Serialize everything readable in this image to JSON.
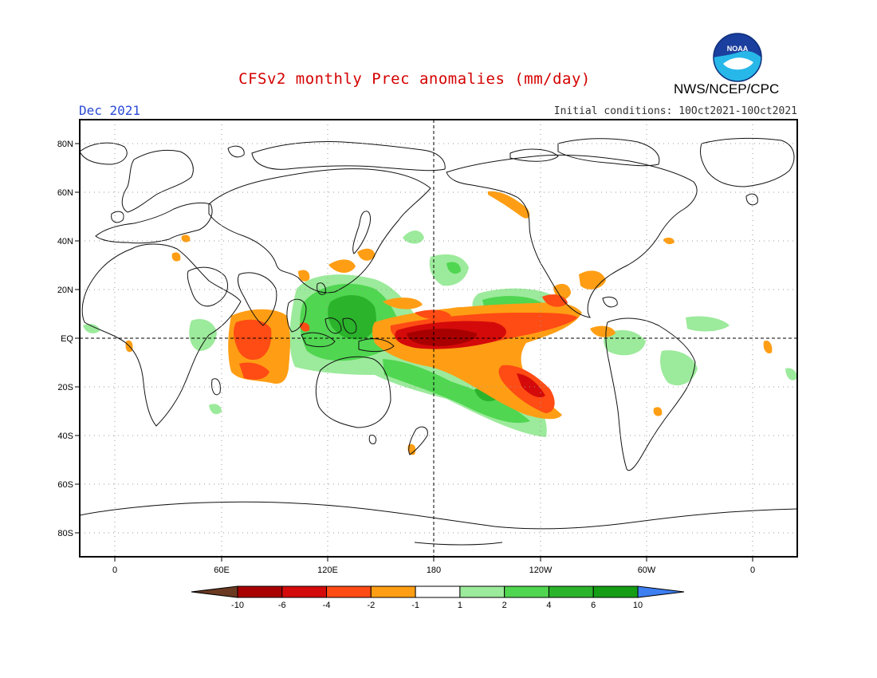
{
  "title": "CFSv2 monthly Prec anomalies (mm/day)",
  "agency": "NWS/NCEP/CPC",
  "logo_text": "NOAA",
  "date_label": "Dec 2021",
  "initial_conditions": "Initial conditions: 10Oct2021-10Oct2021",
  "lat_labels": [
    "80N",
    "60N",
    "40N",
    "20N",
    "EQ",
    "20S",
    "40S",
    "60S",
    "80S"
  ],
  "lon_labels": [
    "0",
    "60E",
    "120E",
    "180",
    "120W",
    "60W",
    "0"
  ],
  "colorbar": {
    "ticks": [
      "-10",
      "-6",
      "-4",
      "-2",
      "-1",
      "1",
      "2",
      "4",
      "6",
      "10"
    ],
    "colors": [
      "#6b3a22",
      "#a80000",
      "#d40a0a",
      "#ff4b14",
      "#ff9e14",
      "#ffffff",
      "#9cea9c",
      "#50d650",
      "#2bb32b",
      "#159e15",
      "#3d7ef0"
    ]
  },
  "colors": {
    "title": "#d40000",
    "date_label": "#2a4bd7",
    "wet_light": "#9cea9c",
    "wet_mid": "#50d650",
    "wet_strong": "#2bb32b",
    "dry_light": "#ff9e14",
    "dry_mid": "#ff4b14",
    "dry_strong": "#d40a0a",
    "dry_extreme": "#a80000"
  }
}
